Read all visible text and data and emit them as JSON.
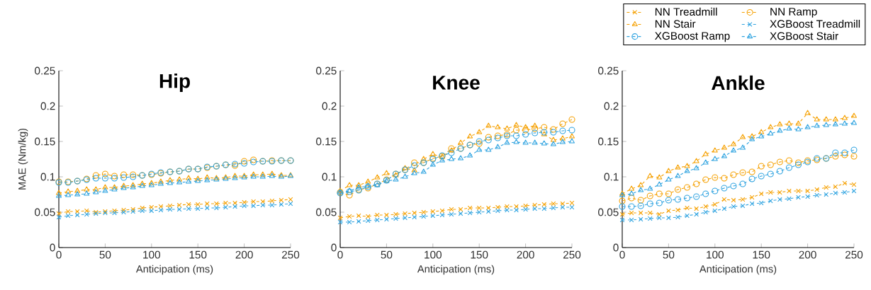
{
  "chart_data": [
    {
      "type": "line",
      "title": "Hip",
      "xlabel": "Anticipation (ms)",
      "ylabel": "MAE (Nm/kg)",
      "xlim": [
        0,
        250
      ],
      "ylim": [
        0,
        0.25
      ],
      "xticks": [
        0,
        50,
        100,
        150,
        200,
        250
      ],
      "yticks": [
        0,
        0.05,
        0.1,
        0.15,
        0.2,
        0.25
      ],
      "line_style": "dashed",
      "x": [
        0,
        10,
        20,
        30,
        40,
        50,
        60,
        70,
        80,
        90,
        100,
        110,
        120,
        130,
        140,
        150,
        160,
        170,
        180,
        190,
        200,
        210,
        220,
        230,
        240,
        250
      ],
      "series": [
        {
          "color": "#f5a000",
          "marker": "cross",
          "values": [
            0.048,
            0.051,
            0.051,
            0.052,
            0.05,
            0.051,
            0.052,
            0.053,
            0.054,
            0.056,
            0.057,
            0.058,
            0.059,
            0.06,
            0.061,
            0.061,
            0.062,
            0.062,
            0.063,
            0.063,
            0.064,
            0.065,
            0.065,
            0.066,
            0.067,
            0.068
          ]
        },
        {
          "color": "#f5a000",
          "marker": "circle",
          "values": [
            0.093,
            0.093,
            0.094,
            0.097,
            0.102,
            0.104,
            0.101,
            0.103,
            0.103,
            0.102,
            0.103,
            0.105,
            0.107,
            0.108,
            0.111,
            0.111,
            0.113,
            0.115,
            0.117,
            0.116,
            0.122,
            0.124,
            0.122,
            0.123,
            0.123,
            0.123
          ]
        },
        {
          "color": "#f5a000",
          "marker": "triangle",
          "values": [
            0.077,
            0.079,
            0.08,
            0.082,
            0.082,
            0.085,
            0.085,
            0.087,
            0.088,
            0.09,
            0.091,
            0.093,
            0.095,
            0.096,
            0.098,
            0.097,
            0.099,
            0.098,
            0.099,
            0.101,
            0.101,
            0.103,
            0.103,
            0.104,
            0.102,
            0.102
          ]
        },
        {
          "color": "#2fa3e0",
          "marker": "cross",
          "values": [
            0.043,
            0.045,
            0.046,
            0.047,
            0.048,
            0.049,
            0.049,
            0.05,
            0.051,
            0.052,
            0.052,
            0.053,
            0.054,
            0.054,
            0.055,
            0.055,
            0.056,
            0.056,
            0.057,
            0.058,
            0.059,
            0.059,
            0.06,
            0.06,
            0.061,
            0.062
          ]
        },
        {
          "color": "#2fa3e0",
          "marker": "circle",
          "values": [
            0.092,
            0.092,
            0.094,
            0.096,
            0.098,
            0.098,
            0.098,
            0.099,
            0.1,
            0.102,
            0.104,
            0.106,
            0.107,
            0.108,
            0.111,
            0.111,
            0.114,
            0.115,
            0.117,
            0.118,
            0.119,
            0.121,
            0.122,
            0.122,
            0.123,
            0.123
          ]
        },
        {
          "color": "#2fa3e0",
          "marker": "triangle",
          "values": [
            0.073,
            0.074,
            0.075,
            0.076,
            0.078,
            0.08,
            0.082,
            0.084,
            0.085,
            0.087,
            0.088,
            0.09,
            0.091,
            0.092,
            0.093,
            0.094,
            0.095,
            0.096,
            0.097,
            0.098,
            0.099,
            0.1,
            0.1,
            0.101,
            0.1,
            0.101
          ]
        }
      ]
    },
    {
      "type": "line",
      "title": "Knee",
      "xlabel": "Anticipation (ms)",
      "xlim": [
        0,
        250
      ],
      "ylim": [
        0,
        0.25
      ],
      "xticks": [
        0,
        50,
        100,
        150,
        200,
        250
      ],
      "yticks": [
        0,
        0.05,
        0.1,
        0.15,
        0.2,
        0.25
      ],
      "line_style": "dashed",
      "x": [
        0,
        10,
        20,
        30,
        40,
        50,
        60,
        70,
        80,
        90,
        100,
        110,
        120,
        130,
        140,
        150,
        160,
        170,
        180,
        190,
        200,
        210,
        220,
        230,
        240,
        250
      ],
      "series": [
        {
          "color": "#f5a000",
          "marker": "cross",
          "values": [
            0.042,
            0.044,
            0.045,
            0.044,
            0.046,
            0.046,
            0.047,
            0.048,
            0.049,
            0.05,
            0.051,
            0.052,
            0.054,
            0.054,
            0.056,
            0.056,
            0.056,
            0.057,
            0.058,
            0.058,
            0.059,
            0.06,
            0.061,
            0.062,
            0.062,
            0.063
          ]
        },
        {
          "color": "#f5a000",
          "marker": "circle",
          "values": [
            0.078,
            0.074,
            0.082,
            0.084,
            0.09,
            0.096,
            0.104,
            0.11,
            0.12,
            0.12,
            0.126,
            0.129,
            0.14,
            0.14,
            0.145,
            0.147,
            0.156,
            0.158,
            0.16,
            0.166,
            0.166,
            0.168,
            0.17,
            0.167,
            0.175,
            0.181
          ]
        },
        {
          "color": "#f5a000",
          "marker": "triangle",
          "values": [
            0.08,
            0.088,
            0.088,
            0.093,
            0.099,
            0.105,
            0.102,
            0.112,
            0.109,
            0.125,
            0.132,
            0.128,
            0.137,
            0.148,
            0.157,
            0.163,
            0.172,
            0.17,
            0.168,
            0.173,
            0.17,
            0.172,
            0.16,
            0.152,
            0.154,
            0.157
          ]
        },
        {
          "color": "#2fa3e0",
          "marker": "cross",
          "values": [
            0.036,
            0.036,
            0.037,
            0.038,
            0.039,
            0.04,
            0.041,
            0.042,
            0.043,
            0.044,
            0.045,
            0.046,
            0.047,
            0.048,
            0.049,
            0.05,
            0.051,
            0.052,
            0.053,
            0.053,
            0.054,
            0.055,
            0.055,
            0.056,
            0.057,
            0.057
          ]
        },
        {
          "color": "#2fa3e0",
          "marker": "circle",
          "values": [
            0.077,
            0.079,
            0.081,
            0.086,
            0.09,
            0.095,
            0.104,
            0.11,
            0.116,
            0.12,
            0.125,
            0.13,
            0.134,
            0.14,
            0.145,
            0.15,
            0.152,
            0.155,
            0.158,
            0.158,
            0.16,
            0.162,
            0.163,
            0.163,
            0.165,
            0.166
          ]
        },
        {
          "color": "#2fa3e0",
          "marker": "triangle",
          "values": [
            0.078,
            0.08,
            0.085,
            0.087,
            0.088,
            0.094,
            0.096,
            0.1,
            0.105,
            0.107,
            0.117,
            0.123,
            0.125,
            0.126,
            0.13,
            0.138,
            0.138,
            0.142,
            0.148,
            0.149,
            0.148,
            0.148,
            0.147,
            0.146,
            0.149,
            0.15
          ]
        }
      ]
    },
    {
      "type": "line",
      "title": "Ankle",
      "xlabel": "Anticipation (ms)",
      "xlim": [
        0,
        250
      ],
      "ylim": [
        0,
        0.25
      ],
      "xticks": [
        0,
        50,
        100,
        150,
        200,
        250
      ],
      "yticks": [
        0,
        0.05,
        0.1,
        0.15,
        0.2,
        0.25
      ],
      "line_style": "dashed",
      "legend": "top right",
      "x": [
        0,
        10,
        20,
        30,
        40,
        50,
        60,
        70,
        80,
        90,
        100,
        110,
        120,
        130,
        140,
        150,
        160,
        170,
        180,
        190,
        200,
        210,
        220,
        230,
        240,
        250
      ],
      "series": [
        {
          "name": "NN Treadmill",
          "color": "#f5a000",
          "marker": "cross",
          "values": [
            0.047,
            0.049,
            0.049,
            0.049,
            0.047,
            0.052,
            0.053,
            0.056,
            0.055,
            0.058,
            0.061,
            0.068,
            0.067,
            0.068,
            0.071,
            0.076,
            0.078,
            0.078,
            0.08,
            0.08,
            0.08,
            0.082,
            0.085,
            0.086,
            0.091,
            0.089
          ]
        },
        {
          "name": "NN Ramp",
          "color": "#f5a000",
          "marker": "circle",
          "values": [
            0.066,
            0.07,
            0.067,
            0.073,
            0.076,
            0.076,
            0.082,
            0.085,
            0.09,
            0.096,
            0.099,
            0.098,
            0.103,
            0.106,
            0.107,
            0.115,
            0.117,
            0.121,
            0.123,
            0.12,
            0.123,
            0.124,
            0.126,
            0.129,
            0.131,
            0.129
          ]
        },
        {
          "name": "NN Stair",
          "color": "#f5a000",
          "marker": "triangle",
          "values": [
            0.076,
            0.083,
            0.088,
            0.101,
            0.099,
            0.108,
            0.113,
            0.115,
            0.122,
            0.132,
            0.137,
            0.141,
            0.146,
            0.156,
            0.157,
            0.163,
            0.17,
            0.174,
            0.175,
            0.175,
            0.19,
            0.181,
            0.181,
            0.181,
            0.183,
            0.186
          ]
        },
        {
          "name": "XGBoost Treadmill",
          "color": "#2fa3e0",
          "marker": "cross",
          "values": [
            0.039,
            0.039,
            0.04,
            0.041,
            0.042,
            0.042,
            0.043,
            0.045,
            0.047,
            0.05,
            0.052,
            0.055,
            0.058,
            0.059,
            0.062,
            0.063,
            0.066,
            0.068,
            0.069,
            0.071,
            0.072,
            0.074,
            0.075,
            0.077,
            0.078,
            0.08
          ]
        },
        {
          "name": "XGBoost Ramp",
          "color": "#2fa3e0",
          "marker": "circle",
          "values": [
            0.058,
            0.058,
            0.059,
            0.062,
            0.063,
            0.067,
            0.068,
            0.07,
            0.072,
            0.076,
            0.08,
            0.084,
            0.087,
            0.09,
            0.097,
            0.101,
            0.104,
            0.108,
            0.113,
            0.117,
            0.121,
            0.126,
            0.126,
            0.134,
            0.134,
            0.138
          ]
        },
        {
          "name": "XGBoost Stair",
          "color": "#2fa3e0",
          "marker": "triangle",
          "values": [
            0.074,
            0.076,
            0.081,
            0.083,
            0.089,
            0.096,
            0.101,
            0.108,
            0.112,
            0.12,
            0.125,
            0.129,
            0.137,
            0.141,
            0.153,
            0.157,
            0.161,
            0.165,
            0.168,
            0.167,
            0.17,
            0.172,
            0.173,
            0.174,
            0.175,
            0.176
          ]
        }
      ]
    }
  ]
}
